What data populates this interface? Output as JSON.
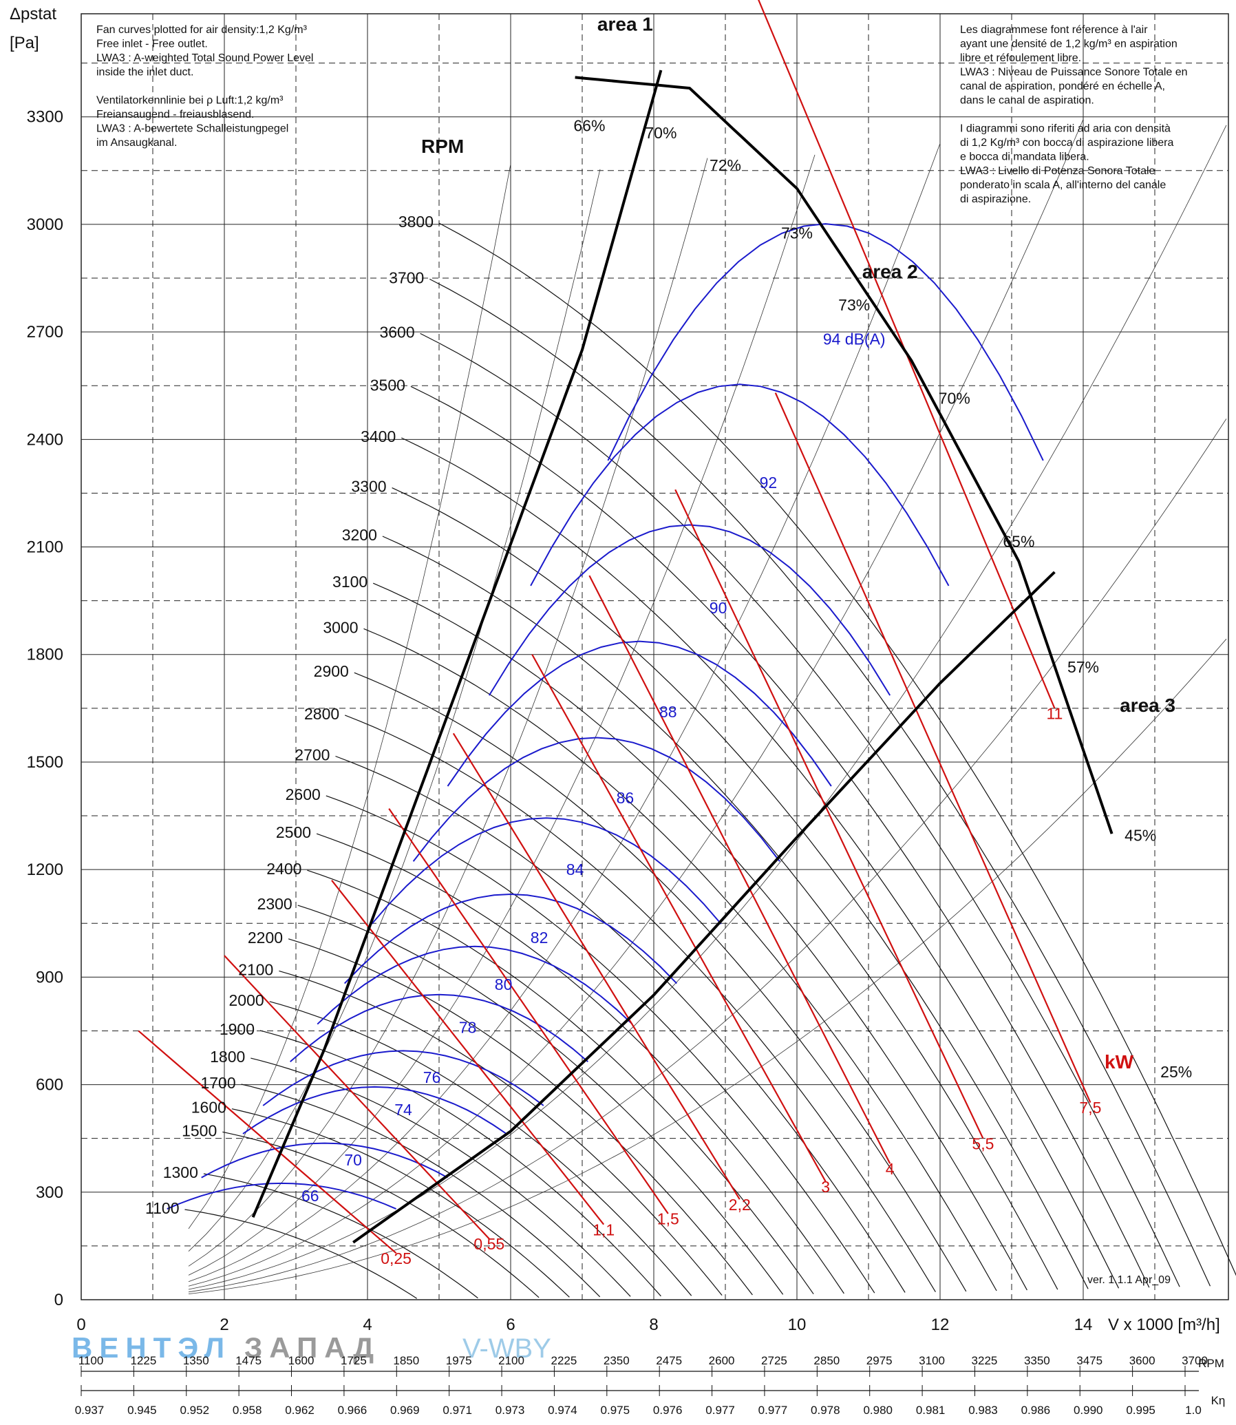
{
  "brand": {
    "left": "ВЕНТЭЛ",
    "right": "ЗАПАД",
    "tag": "V-WBY"
  },
  "colors": {
    "grid": "#222222",
    "rpm": "#111111",
    "db": "#1a1acc",
    "kw": "#d01010",
    "watermark_left": "#7ab8e8",
    "watermark_right": "#9a9a9a"
  },
  "notes": {
    "left": [
      "Fan curves plotted for air density:1,2 Kg/m³",
      "Free inlet - Free outlet.",
      "LWA3 : A-weighted Total Sound Power Level",
      "inside the inlet duct.",
      "",
      "Ventilatorkennlinie bei ρ Luft:1,2 kg/m³",
      "Freiansaugend - freiausblasend.",
      "LWA3 : A-bewertete Schalleistungpegel",
      "im Ansaugkanal."
    ],
    "right": [
      "Les diagrammese font réference à l'air",
      "ayant une densité de 1,2 kg/m³ en aspiration",
      "libre et réfoulement libre.",
      "LWA3 : Niveau de Puissance Sonore Totale en",
      "canal de aspiration, pondéré en échelle A,",
      "dans le canal de aspiration.",
      "",
      "I diagrammi sono riferiti ad aria con densità",
      "di 1,2 Kg/m³ con bocca di aspirazione libera",
      "e bocca di mandata libera.",
      "LWA3 : Livello di Potenza Sonora Totale",
      "ponderato in scala A, all'interno del canale",
      "di aspirazione."
    ]
  },
  "version": "ver. 1.1.1 Apr_09",
  "chart_data": {
    "type": "line",
    "title": "",
    "ylabel_lines": [
      "Δpstat",
      "[Pa]"
    ],
    "xlabel": "V x 1000 [m³/h]",
    "xlim": [
      0,
      16
    ],
    "ylim": [
      0,
      3500
    ],
    "x_ticks": [
      0,
      2,
      4,
      6,
      8,
      10,
      12,
      14
    ],
    "y_ticks": [
      0,
      300,
      600,
      900,
      1200,
      1500,
      1800,
      2100,
      2400,
      2700,
      3000,
      3300
    ],
    "grid": true,
    "rpm_title": "RPM",
    "rpm_curves": [
      {
        "rpm": 1100,
        "label": "1100"
      },
      {
        "rpm": 1300,
        "label": "1300"
      },
      {
        "rpm": 1500,
        "label": "1500"
      },
      {
        "rpm": 1600,
        "label": "1600"
      },
      {
        "rpm": 1700,
        "label": "1700"
      },
      {
        "rpm": 1800,
        "label": "1800"
      },
      {
        "rpm": 1900,
        "label": "1900"
      },
      {
        "rpm": 2000,
        "label": "2000"
      },
      {
        "rpm": 2100,
        "label": "2100"
      },
      {
        "rpm": 2200,
        "label": "2200"
      },
      {
        "rpm": 2300,
        "label": "2300"
      },
      {
        "rpm": 2400,
        "label": "2400"
      },
      {
        "rpm": 2500,
        "label": "2500"
      },
      {
        "rpm": 2600,
        "label": "2600"
      },
      {
        "rpm": 2700,
        "label": "2700"
      },
      {
        "rpm": 2800,
        "label": "2800"
      },
      {
        "rpm": 2900,
        "label": "2900"
      },
      {
        "rpm": 3000,
        "label": "3000"
      },
      {
        "rpm": 3100,
        "label": "3100"
      },
      {
        "rpm": 3200,
        "label": "3200"
      },
      {
        "rpm": 3300,
        "label": "3300"
      },
      {
        "rpm": 3400,
        "label": "3400"
      },
      {
        "rpm": 3500,
        "label": "3500"
      },
      {
        "rpm": 3600,
        "label": "3600"
      },
      {
        "rpm": 3700,
        "label": "3700"
      },
      {
        "rpm": 3800,
        "label": "3800"
      }
    ],
    "sound_levels": [
      {
        "label": "66",
        "x": 3.2,
        "y": 290
      },
      {
        "label": "70",
        "x": 3.8,
        "y": 390
      },
      {
        "label": "74",
        "x": 4.5,
        "y": 530
      },
      {
        "label": "76",
        "x": 4.9,
        "y": 620
      },
      {
        "label": "78",
        "x": 5.4,
        "y": 760
      },
      {
        "label": "80",
        "x": 5.9,
        "y": 880
      },
      {
        "label": "82",
        "x": 6.4,
        "y": 1010
      },
      {
        "label": "84",
        "x": 6.9,
        "y": 1200
      },
      {
        "label": "86",
        "x": 7.6,
        "y": 1400
      },
      {
        "label": "88",
        "x": 8.2,
        "y": 1640
      },
      {
        "label": "90",
        "x": 8.9,
        "y": 1930
      },
      {
        "label": "92",
        "x": 9.6,
        "y": 2280
      },
      {
        "label": "94 dB(A)",
        "x": 10.8,
        "y": 2680
      }
    ],
    "power_levels_kW": [
      {
        "label": "0,25",
        "x": 4.4,
        "y": 100
      },
      {
        "label": "0,55",
        "x": 5.7,
        "y": 140
      },
      {
        "label": "1,1",
        "x": 7.3,
        "y": 180
      },
      {
        "label": "1,5",
        "x": 8.2,
        "y": 210
      },
      {
        "label": "2,2",
        "x": 9.2,
        "y": 250
      },
      {
        "label": "3",
        "x": 10.4,
        "y": 300
      },
      {
        "label": "4",
        "x": 11.3,
        "y": 350
      },
      {
        "label": "5,5",
        "x": 12.6,
        "y": 420
      },
      {
        "label": "7,5",
        "x": 14.1,
        "y": 520
      },
      {
        "label": "11",
        "x": 13.6,
        "y": 1620
      }
    ],
    "kw_title": "kW",
    "efficiency_labels": [
      {
        "label": "66%",
        "x": 7.1,
        "y": 3260
      },
      {
        "label": "70%",
        "x": 8.1,
        "y": 3240
      },
      {
        "label": "72%",
        "x": 9.0,
        "y": 3150
      },
      {
        "label": "73%",
        "x": 10.0,
        "y": 2960
      },
      {
        "label": "73%",
        "x": 10.8,
        "y": 2760
      },
      {
        "label": "70%",
        "x": 12.2,
        "y": 2500
      },
      {
        "label": "65%",
        "x": 13.1,
        "y": 2100
      },
      {
        "label": "57%",
        "x": 14.0,
        "y": 1750
      },
      {
        "label": "45%",
        "x": 14.8,
        "y": 1280
      },
      {
        "label": "25%",
        "x": 15.3,
        "y": 620
      }
    ],
    "areas": [
      {
        "label": "area 1",
        "x": 7.6,
        "y": 3540
      },
      {
        "label": "area 2",
        "x": 11.3,
        "y": 2850
      },
      {
        "label": "area 3",
        "x": 14.9,
        "y": 1640
      }
    ],
    "bottom_scales": {
      "rpm_label": "RPM",
      "rpm": [
        "1100",
        "1225",
        "1350",
        "1475",
        "1600",
        "1725",
        "1850",
        "1975",
        "2100",
        "2225",
        "2350",
        "2475",
        "2600",
        "2725",
        "2850",
        "2975",
        "3100",
        "3225",
        "3350",
        "3475",
        "3600",
        "3700"
      ],
      "k_label": "Kη",
      "k": [
        "0.937",
        "0.945",
        "0.952",
        "0.958",
        "0.962",
        "0.966",
        "0.969",
        "0.971",
        "0.973",
        "0.974",
        "0.975",
        "0.976",
        "0.977",
        "0.977",
        "0.978",
        "0.980",
        "0.981",
        "0.983",
        "0.986",
        "0.990",
        "0.995",
        "1.0"
      ]
    }
  }
}
